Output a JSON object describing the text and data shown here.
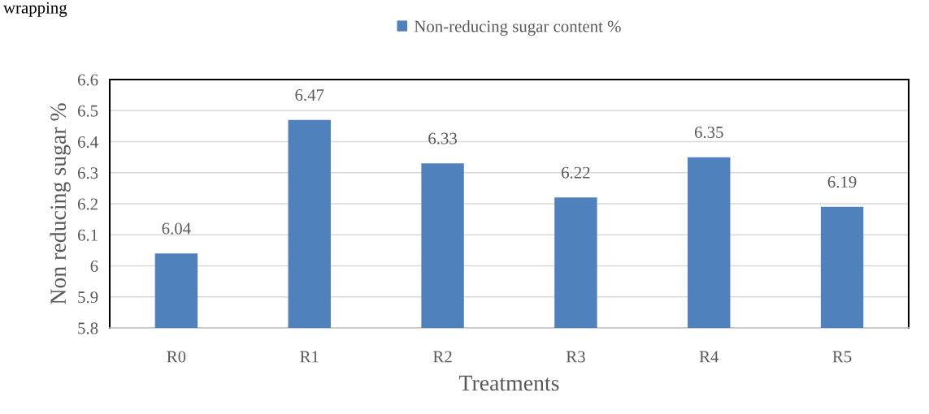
{
  "chart_data": {
    "type": "bar",
    "categories": [
      "R0",
      "R1",
      "R2",
      "R3",
      "R4",
      "R5"
    ],
    "series": [
      {
        "name": "Non-reducing sugar content %",
        "color": "#4f81bd",
        "values": [
          6.04,
          6.47,
          6.33,
          6.22,
          6.35,
          6.19
        ]
      }
    ],
    "xlabel": "Treatments",
    "ylabel": "Non reducing sugar %",
    "ylim": [
      5.8,
      6.6
    ],
    "yticks": [
      5.8,
      5.9,
      6,
      6.1,
      6.2,
      6.3,
      6.4,
      6.5,
      6.6
    ],
    "grid": "y",
    "legend": "top",
    "data_labels": true,
    "annotations": [
      "wrapping"
    ]
  }
}
